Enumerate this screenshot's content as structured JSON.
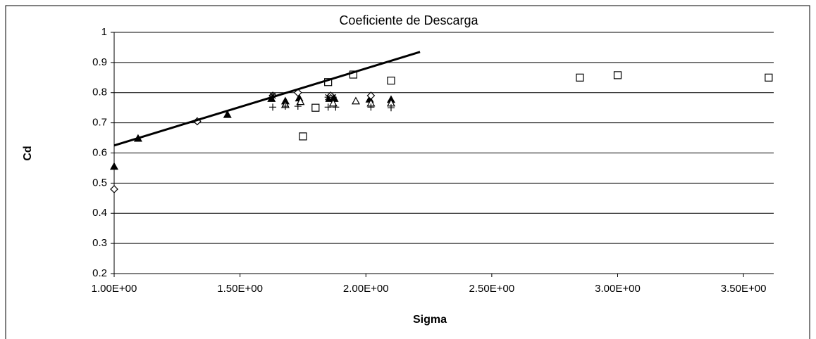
{
  "chart_data": {
    "type": "scatter",
    "title": "Coeficiente de Descarga",
    "x_label": "Sigma",
    "y_label": "Cd",
    "xlim": [
      1,
      3.62
    ],
    "ylim": [
      0.2,
      1
    ],
    "xticks": [
      {
        "value": 1,
        "label": "1.00E+00"
      },
      {
        "value": 1.5,
        "label": "1.50E+00"
      },
      {
        "value": 2,
        "label": "2.00E+00"
      },
      {
        "value": 2.5,
        "label": "2.50E+00"
      },
      {
        "value": 3,
        "label": "3.00E+00"
      },
      {
        "value": 3.5,
        "label": "3.50E+00"
      }
    ],
    "yticks": [
      0.2,
      0.3,
      0.4,
      0.5,
      0.6,
      0.7,
      0.8,
      0.9,
      1
    ],
    "grid": true,
    "series": [
      {
        "marker": "triangle-filled",
        "color": "#000000",
        "x": [
          1.0,
          1.095,
          1.45,
          1.625,
          1.68,
          1.735,
          1.855,
          1.875,
          2.015,
          2.1
        ],
        "values": [
          0.555,
          0.648,
          0.727,
          0.78,
          0.772,
          0.782,
          0.78,
          0.78,
          0.778,
          0.777
        ]
      },
      {
        "marker": "square-open",
        "color": "#000000",
        "x": [
          1.75,
          1.8,
          1.85,
          1.95,
          2.1,
          2.85,
          3.0,
          3.6
        ],
        "values": [
          0.655,
          0.75,
          0.835,
          0.86,
          0.84,
          0.85,
          0.858,
          0.85
        ]
      },
      {
        "marker": "diamond-open",
        "color": "#000000",
        "x": [
          1.0,
          1.33,
          1.63,
          1.73,
          1.86,
          2.02
        ],
        "values": [
          0.48,
          0.705,
          0.79,
          0.8,
          0.79,
          0.79
        ]
      },
      {
        "marker": "triangle-open",
        "color": "#000000",
        "x": [
          1.68,
          1.74,
          1.87,
          1.96,
          2.02,
          2.1
        ],
        "values": [
          0.76,
          0.77,
          0.765,
          0.772,
          0.765,
          0.765
        ]
      },
      {
        "marker": "plus",
        "color": "#000000",
        "x": [
          1.63,
          1.68,
          1.73,
          1.85,
          1.88,
          2.02,
          2.1
        ],
        "values": [
          0.752,
          0.755,
          0.755,
          0.752,
          0.752,
          0.752,
          0.75
        ]
      },
      {
        "marker": "asterisk",
        "color": "#000000",
        "x": [
          1.63,
          1.85,
          1.87
        ],
        "values": [
          0.79,
          0.785,
          0.785
        ]
      },
      {
        "marker": "none",
        "color": "#000000",
        "x": [
          1.0,
          2.215
        ],
        "values": [
          0.625,
          0.935
        ]
      }
    ]
  }
}
